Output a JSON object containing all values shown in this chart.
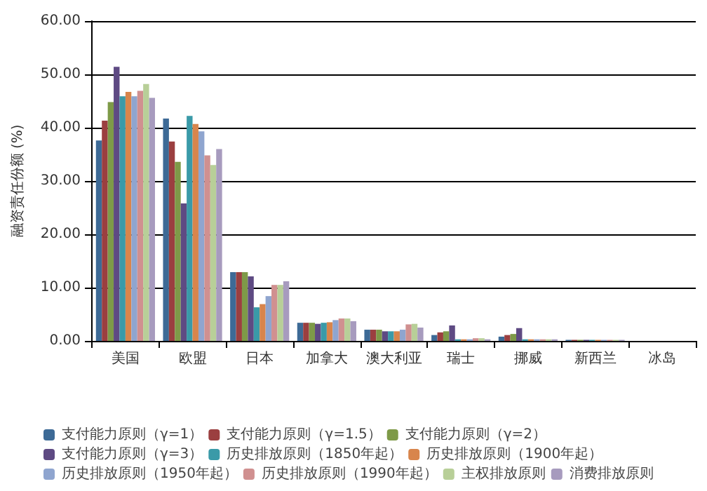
{
  "chart_data": {
    "type": "bar",
    "ylabel": "融资责任份额 (%)",
    "categories": [
      "美国",
      "欧盟",
      "日本",
      "加拿大",
      "澳大利亚",
      "瑞士",
      "挪威",
      "新西兰",
      "冰岛"
    ],
    "series": [
      {
        "name": "支付能力原则（γ=1）",
        "color": "#3d6a96",
        "values": [
          37.6,
          41.7,
          12.9,
          3.4,
          2.1,
          1.1,
          0.8,
          0.2,
          0
        ]
      },
      {
        "name": "支付能力原则（γ=1.5）",
        "color": "#9b3f40",
        "values": [
          41.3,
          37.4,
          12.9,
          3.4,
          2.1,
          1.6,
          1.1,
          0.2,
          0
        ]
      },
      {
        "name": "支付能力原则（γ=2）",
        "color": "#7e9a48",
        "values": [
          44.8,
          33.6,
          12.9,
          3.4,
          2.1,
          1.8,
          1.3,
          0.2,
          0
        ]
      },
      {
        "name": "支付能力原则（γ=3）",
        "color": "#5e4a83",
        "values": [
          51.4,
          25.8,
          12.1,
          3.2,
          1.8,
          2.9,
          2.4,
          0.2,
          0
        ]
      },
      {
        "name": "历史排放原则（1850年起）",
        "color": "#3a9aa8",
        "values": [
          45.9,
          42.2,
          6.3,
          3.4,
          1.8,
          0.3,
          0.3,
          0.2,
          0
        ]
      },
      {
        "name": "历史排放原则（1900年起）",
        "color": "#d8854c",
        "values": [
          46.7,
          40.7,
          6.9,
          3.5,
          1.8,
          0.3,
          0.3,
          0.2,
          0
        ]
      },
      {
        "name": "历史排放原则（1950年起）",
        "color": "#8fa5cf",
        "values": [
          45.9,
          39.3,
          8.4,
          3.9,
          2.1,
          0.3,
          0.3,
          0.2,
          0
        ]
      },
      {
        "name": "历史排放原则（1990年起）",
        "color": "#d09090",
        "values": [
          46.9,
          34.8,
          10.5,
          4.2,
          3.1,
          0.5,
          0.3,
          0.2,
          0
        ]
      },
      {
        "name": "主权排放原则",
        "color": "#b8cf98",
        "values": [
          48.2,
          33.0,
          10.5,
          4.2,
          3.2,
          0.5,
          0.3,
          0.2,
          0
        ]
      },
      {
        "name": "消费排放原则",
        "color": "#a79bbe",
        "values": [
          45.6,
          36.0,
          11.2,
          3.7,
          2.5,
          0.3,
          0.3,
          0.2,
          0
        ]
      }
    ],
    "ylim": [
      0,
      60
    ],
    "yticks": [
      {
        "value": 0,
        "label": "0.00"
      },
      {
        "value": 10,
        "label": "10.00"
      },
      {
        "value": 20,
        "label": "20.00"
      },
      {
        "value": 30,
        "label": "30.00"
      },
      {
        "value": 40,
        "label": "40.00"
      },
      {
        "value": 50,
        "label": "50.00"
      },
      {
        "value": 60,
        "label": "60.00"
      }
    ],
    "grid": "y",
    "legend": "bottom"
  }
}
